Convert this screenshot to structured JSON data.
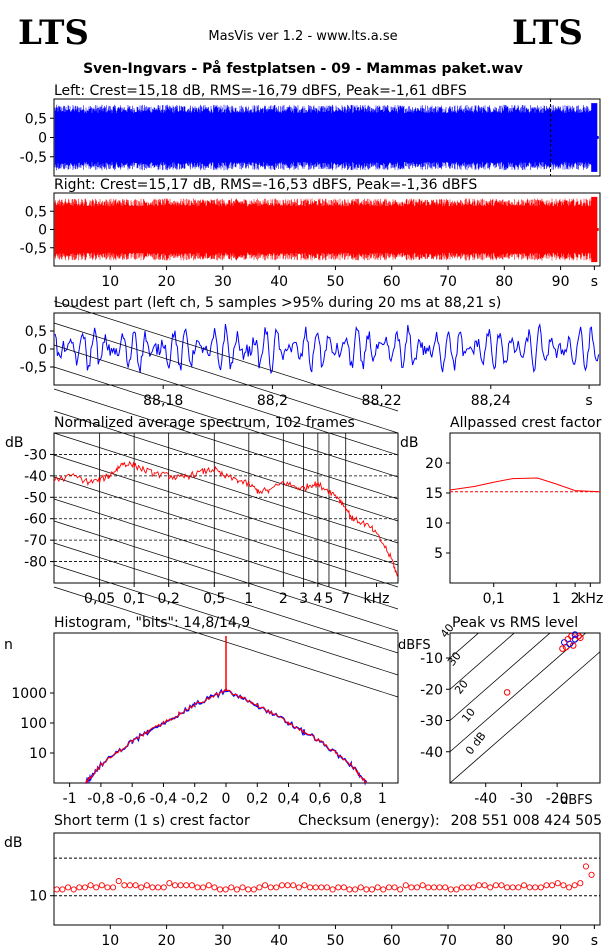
{
  "header": {
    "logo_left": "LTS",
    "logo_right": "LTS",
    "app_name": "MasVis ver 1.2 - www.lts.a.se",
    "track_title": "Sven-Ingvars - På festplatsen - 09 - Mammas paket.wav"
  },
  "colors": {
    "left": "#0000ff",
    "right": "#ff0000",
    "grid": "#000000"
  },
  "chart_data": [
    {
      "id": "left_wave",
      "type": "line",
      "title": "Left: Crest=15,18 dB, RMS=-16,79 dBFS, Peak=-1,61 dBFS",
      "y_ticks": [
        "0,5",
        "0",
        "-0,5"
      ],
      "y_tick_values": [
        0.5,
        0,
        -0.5
      ],
      "ylim": [
        -1,
        1
      ],
      "xlim": [
        0,
        97
      ],
      "envelope_amplitude": 0.85,
      "track_end_s": 96.5,
      "marker_s": 88.21,
      "series": [
        {
          "values_description_only": "",
          "color": "#0000ff"
        }
      ]
    },
    {
      "id": "right_wave",
      "type": "line",
      "title": "Right: Crest=15,17 dB, RMS=-16,53 dBFS, Peak=-1,36 dBFS",
      "y_ticks": [
        "0,5",
        "0",
        "-0,5"
      ],
      "y_tick_values": [
        0.5,
        0,
        -0.5
      ],
      "ylim": [
        -1,
        1
      ],
      "xlim": [
        0,
        97
      ],
      "envelope_amplitude": 0.85,
      "track_end_s": 96.5,
      "x_ticks": [
        "10",
        "20",
        "30",
        "40",
        "50",
        "60",
        "70",
        "80",
        "90",
        "s"
      ],
      "x_tick_values": [
        10,
        20,
        30,
        40,
        50,
        60,
        70,
        80,
        90,
        96
      ]
    },
    {
      "id": "loudest",
      "type": "line",
      "title": "Loudest part (left  ch, 5 samples >95% during 20 ms at 88,21 s)",
      "y_ticks": [
        "0,5",
        "0",
        "-0,5"
      ],
      "y_tick_values": [
        0.5,
        0,
        -0.5
      ],
      "ylim": [
        -1,
        1
      ],
      "xlim": [
        88.16,
        88.26
      ],
      "x_ticks": [
        "88,18",
        "88,2",
        "88,22",
        "88,24",
        "s"
      ],
      "x_tick_values": [
        88.18,
        88.2,
        88.22,
        88.24,
        88.258
      ]
    },
    {
      "id": "spectrum",
      "type": "line",
      "title": "Normalized average spectrum, 102 frames",
      "ylabel": "dB",
      "y_ticks": [
        "-30",
        "-40",
        "-50",
        "-60",
        "-70",
        "-80"
      ],
      "y_tick_values": [
        -30,
        -40,
        -50,
        -60,
        -70,
        -80
      ],
      "ylim": [
        -90,
        -20
      ],
      "xlim": [
        0.02,
        20
      ],
      "xscale": "log",
      "x_ticks": [
        "0,05",
        "0,1",
        "0,2",
        "0,5",
        "1",
        "2",
        "3",
        "4",
        "5",
        "7",
        "kHz"
      ],
      "x_tick_values": [
        0.05,
        0.1,
        0.2,
        0.5,
        1,
        2,
        3,
        4,
        5,
        7,
        13
      ],
      "x": [
        0.02,
        0.03,
        0.04,
        0.05,
        0.06,
        0.07,
        0.08,
        0.1,
        0.12,
        0.15,
        0.2,
        0.25,
        0.3,
        0.4,
        0.5,
        0.6,
        0.8,
        1,
        1.2,
        1.5,
        2,
        2.5,
        3,
        3.5,
        4,
        5,
        6,
        7,
        8,
        10,
        12,
        15,
        18,
        20
      ],
      "y": [
        -42,
        -40,
        -43,
        -42,
        -40,
        -37,
        -34,
        -35,
        -37,
        -39,
        -40,
        -41,
        -40,
        -38,
        -37,
        -40,
        -42,
        -44,
        -47,
        -47,
        -43,
        -45,
        -46,
        -44,
        -44,
        -47,
        -50,
        -55,
        -60,
        -62,
        -65,
        -72,
        -80,
        -88
      ]
    },
    {
      "id": "allpass",
      "type": "line",
      "title": "Allpassed crest factor",
      "ylabel": "dB",
      "y_ticks": [
        "20",
        "15",
        "10",
        "5"
      ],
      "y_tick_values": [
        20,
        15,
        10,
        5
      ],
      "ylim": [
        0,
        25
      ],
      "xlim": [
        0.02,
        5
      ],
      "xscale": "log",
      "x_ticks": [
        "0,1",
        "1",
        "2",
        "kHz"
      ],
      "x_tick_values": [
        0.1,
        1,
        2,
        3.5
      ],
      "x": [
        0.02,
        0.05,
        0.1,
        0.2,
        0.5,
        1,
        2,
        5
      ],
      "y": [
        15.5,
        16.1,
        16.8,
        17.4,
        17.5,
        16.5,
        15.4,
        15.2
      ],
      "reference": 15.2
    },
    {
      "id": "histogram",
      "type": "line",
      "title": "Histogram, \"bits\": 14,8/14,9",
      "ylabel": "n",
      "yscale": "log",
      "y_ticks": [
        "1000",
        "100",
        "10"
      ],
      "y_tick_values": [
        1000,
        100,
        10
      ],
      "ylim": [
        1,
        100000
      ],
      "xlim": [
        -1.1,
        1.1
      ],
      "x_ticks": [
        "-1",
        "-0,8",
        "-0,6",
        "-0,4",
        "-0,2",
        "0",
        "0,2",
        "0,4",
        "0,6",
        "0,8",
        "1"
      ],
      "x_tick_values": [
        -1,
        -0.8,
        -0.6,
        -0.4,
        -0.2,
        0,
        0.2,
        0.4,
        0.6,
        0.8,
        1
      ],
      "x": [
        -0.9,
        -0.85,
        -0.8,
        -0.7,
        -0.6,
        -0.5,
        -0.4,
        -0.3,
        -0.2,
        -0.1,
        0,
        0.1,
        0.2,
        0.3,
        0.4,
        0.5,
        0.6,
        0.7,
        0.8,
        0.85,
        0.9
      ],
      "y": [
        1,
        2,
        4,
        10,
        25,
        50,
        100,
        200,
        400,
        700,
        1200,
        700,
        400,
        200,
        100,
        50,
        25,
        10,
        4,
        2,
        1
      ],
      "spike_x": 0,
      "spike_y": 80000
    },
    {
      "id": "peak_rms",
      "type": "scatter",
      "title": "Peak vs RMS level",
      "ylabel": "dBFS",
      "xlabel": "dBFS",
      "y_ticks": [
        "-10",
        "-20",
        "-30",
        "-40"
      ],
      "y_tick_values": [
        -10,
        -20,
        -30,
        -40
      ],
      "ylim": [
        -50,
        -2
      ],
      "xlim": [
        -50,
        -8
      ],
      "x_ticks": [
        "-40",
        "-30",
        "-20"
      ],
      "x_tick_values": [
        -40,
        -30,
        -20
      ],
      "diagonal_labels": [
        "40",
        "30",
        "20",
        "10",
        "0 dB"
      ],
      "diagonal_values": [
        40,
        30,
        20,
        10,
        0
      ],
      "points_rms": [
        -18,
        -17,
        -16,
        -15,
        -15.5,
        -17.5,
        -16.5,
        -14,
        -13.5,
        -15,
        -18.5,
        -34
      ],
      "points_peak": [
        -5,
        -4,
        -3,
        -4,
        -6,
        -6.5,
        -5.5,
        -3,
        -3.5,
        -2.5,
        -7,
        -21
      ]
    },
    {
      "id": "short_crest",
      "type": "scatter",
      "title": "Short term (1 s) crest factor",
      "ylabel": "dB",
      "y_ticks": [
        "10"
      ],
      "y_tick_values": [
        10
      ],
      "ylim": [
        3,
        25
      ],
      "xlim": [
        0,
        97
      ],
      "ref_lines": [
        10,
        19
      ],
      "x_ticks": [
        "10",
        "20",
        "30",
        "40",
        "50",
        "60",
        "70",
        "80",
        "90",
        "s"
      ],
      "x_tick_values": [
        10,
        20,
        30,
        40,
        50,
        60,
        70,
        80,
        90,
        96
      ],
      "values": [
        11.5,
        11.5,
        12,
        11.5,
        12,
        12,
        12.5,
        12,
        12.5,
        12,
        12,
        13.5,
        12.5,
        12.5,
        12.5,
        12,
        12.5,
        12,
        12,
        12,
        13,
        12.5,
        12.5,
        12.5,
        12.5,
        12,
        12,
        12.5,
        12,
        11.5,
        11.5,
        12,
        11.5,
        12,
        11.5,
        11.5,
        12,
        12.5,
        12,
        12,
        12.5,
        12.5,
        12.5,
        12,
        12.5,
        12,
        12,
        12,
        12,
        11.5,
        12,
        12,
        11.5,
        11.5,
        12,
        11.5,
        11.5,
        12,
        11.5,
        12,
        12,
        11.5,
        12.5,
        12,
        12,
        12.5,
        12,
        12,
        12,
        12,
        11.5,
        11.5,
        12,
        12,
        12,
        12.5,
        12.5,
        12,
        12.5,
        12.5,
        12,
        12,
        12,
        12.5,
        12,
        12,
        12,
        12.5,
        12.5,
        13,
        12.5,
        12,
        12.5,
        13,
        17,
        15
      ]
    }
  ],
  "checksum": {
    "label": "Checksum (energy):",
    "value": "208 551 008 424 505"
  }
}
